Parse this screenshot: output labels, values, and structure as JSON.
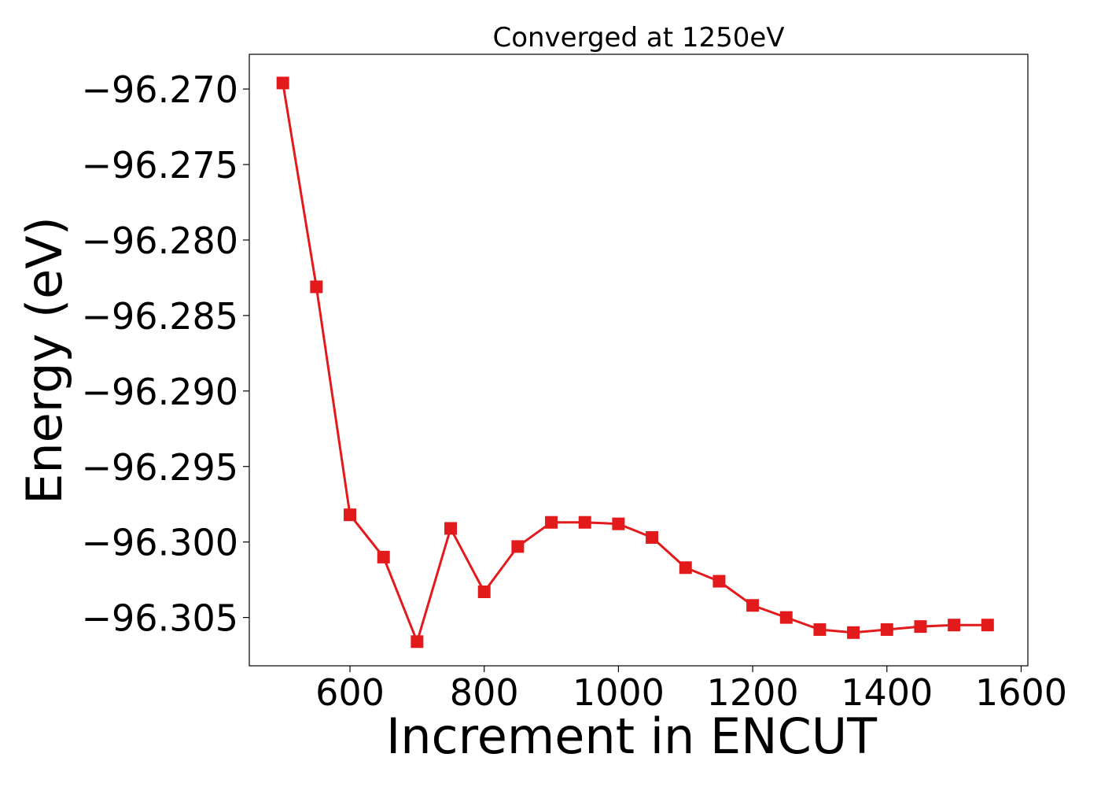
{
  "chart_data": {
    "type": "line",
    "title": "Converged at 1250eV",
    "xlabel": "Increment in ENCUT",
    "ylabel": "Energy (eV)",
    "xlim": [
      450,
      1610
    ],
    "ylim": [
      -96.3082,
      -96.2677
    ],
    "x_ticks": [
      600,
      800,
      1000,
      1200,
      1400,
      1600
    ],
    "x_tick_labels": [
      "600",
      "800",
      "1000",
      "1200",
      "1400",
      "1600"
    ],
    "y_ticks": [
      -96.27,
      -96.275,
      -96.28,
      -96.285,
      -96.29,
      -96.295,
      -96.3,
      -96.305
    ],
    "y_tick_labels": [
      "−96.270",
      "−96.275",
      "−96.280",
      "−96.285",
      "−96.290",
      "−96.295",
      "−96.300",
      "−96.305"
    ],
    "grid": false,
    "series": [
      {
        "color": "#e31a1c",
        "marker": "square",
        "x": [
          500,
          550,
          600,
          650,
          700,
          750,
          800,
          850,
          900,
          950,
          1000,
          1050,
          1100,
          1150,
          1200,
          1250,
          1300,
          1350,
          1400,
          1450,
          1500,
          1550
        ],
        "y": [
          -96.2696,
          -96.2831,
          -96.2982,
          -96.301,
          -96.3066,
          -96.2991,
          -96.3033,
          -96.3003,
          -96.2987,
          -96.2987,
          -96.2988,
          -96.2997,
          -96.3017,
          -96.3026,
          -96.3042,
          -96.305,
          -96.3058,
          -96.306,
          -96.3058,
          -96.3056,
          -96.3055,
          -96.3055
        ]
      }
    ]
  }
}
